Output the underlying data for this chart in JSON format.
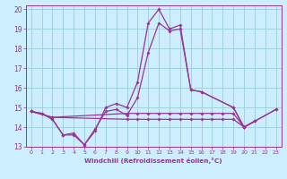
{
  "xlabel": "Windchill (Refroidissement éolien,°C)",
  "background_color": "#cceeff",
  "grid_color": "#99ccdd",
  "line_color": "#993399",
  "xlim": [
    -0.5,
    23.5
  ],
  "ylim": [
    13,
    20.2
  ],
  "yticks": [
    13,
    14,
    15,
    16,
    17,
    18,
    19,
    20
  ],
  "xticks": [
    0,
    1,
    2,
    3,
    4,
    5,
    6,
    7,
    8,
    9,
    10,
    11,
    12,
    13,
    14,
    15,
    16,
    17,
    18,
    19,
    20,
    21,
    22,
    23
  ],
  "series_x": [
    [
      0,
      1,
      2,
      3,
      4,
      5,
      6,
      7,
      8,
      9,
      10,
      11,
      12,
      13,
      14,
      15,
      16,
      19,
      20,
      21
    ],
    [
      0,
      1,
      2,
      3,
      4,
      5,
      6,
      7,
      8,
      9,
      10,
      11,
      12,
      13,
      14,
      15,
      16,
      19,
      20,
      21
    ],
    [
      0,
      2,
      9,
      10,
      11,
      12,
      13,
      14,
      15,
      16,
      17,
      18,
      19,
      20,
      23
    ],
    [
      0,
      2,
      9,
      10,
      11,
      12,
      13,
      14,
      15,
      16,
      17,
      18,
      19,
      20,
      23
    ]
  ],
  "series_y": [
    [
      14.8,
      14.7,
      14.4,
      13.6,
      13.6,
      13.1,
      13.8,
      15.0,
      15.2,
      15.0,
      16.3,
      19.3,
      20.0,
      19.0,
      19.2,
      15.9,
      15.8,
      15.0,
      14.0,
      14.3
    ],
    [
      14.8,
      14.7,
      14.4,
      13.6,
      13.7,
      13.1,
      13.9,
      14.8,
      14.9,
      14.6,
      15.5,
      17.8,
      19.3,
      18.9,
      19.0,
      15.9,
      15.8,
      15.0,
      14.0,
      14.3
    ],
    [
      14.8,
      14.5,
      14.7,
      14.7,
      14.7,
      14.7,
      14.7,
      14.7,
      14.7,
      14.7,
      14.7,
      14.7,
      14.7,
      14.0,
      14.9
    ],
    [
      14.8,
      14.5,
      14.4,
      14.4,
      14.4,
      14.4,
      14.4,
      14.4,
      14.4,
      14.4,
      14.4,
      14.4,
      14.4,
      14.0,
      14.9
    ]
  ]
}
